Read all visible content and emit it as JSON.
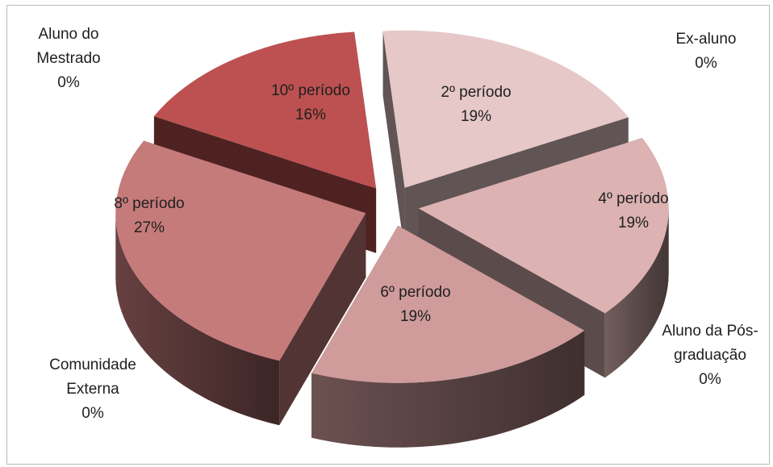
{
  "chart_data": {
    "type": "pie",
    "title": "",
    "slices": [
      {
        "label": "2º período",
        "percent_label": "19%",
        "value": 19,
        "color": "#e6c8c8"
      },
      {
        "label": "4º período",
        "percent_label": "19%",
        "value": 19,
        "color": "#dcb2b2"
      },
      {
        "label": "6º período",
        "percent_label": "19%",
        "value": 19,
        "color": "#cf9b9b"
      },
      {
        "label": "8º período",
        "percent_label": "27%",
        "value": 27,
        "color": "#c67b7b"
      },
      {
        "label": "10º período",
        "percent_label": "16%",
        "value": 16,
        "color": "#bd5151"
      }
    ],
    "zero_categories": [
      {
        "label_lines": [
          "Aluno do",
          "Mestrado"
        ],
        "percent_label": "0%"
      },
      {
        "label_lines": [
          "Ex-aluno"
        ],
        "percent_label": "0%"
      },
      {
        "label_lines": [
          "Aluno da Pós-",
          "graduação"
        ],
        "percent_label": "0%"
      },
      {
        "label_lines": [
          "Comunidade",
          "Externa"
        ],
        "percent_label": "0%"
      }
    ],
    "legend": "none",
    "style": "3d-exploded-pie"
  }
}
